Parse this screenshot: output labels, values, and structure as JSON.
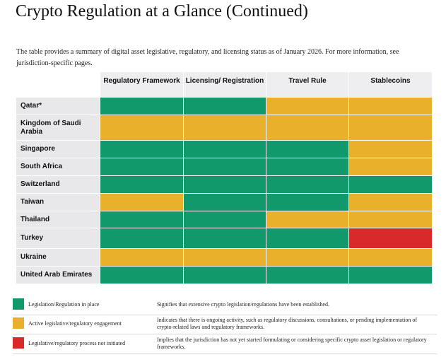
{
  "header": {
    "title": "Crypto Regulation at a Glance (Continued)",
    "intro": "The table provides a summary of digital asset legislative, regulatory, and licensing status as of January 2026. For more information, see jurisdiction-specific pages."
  },
  "table": {
    "columns": [
      "Regulatory Framework",
      "Licensing/ Registration",
      "Travel Rule",
      "Stablecoins"
    ],
    "rows": [
      {
        "name": "Qatar*",
        "cells": [
          "#12996b",
          "#12996b",
          "#e9b02b",
          "#e9b02b"
        ]
      },
      {
        "name": "Kingdom of Saudi Arabia",
        "cells": [
          "#e9b02b",
          "#e9b02b",
          "#e9b02b",
          "#e9b02b"
        ]
      },
      {
        "name": "Singapore",
        "cells": [
          "#12996b",
          "#12996b",
          "#12996b",
          "#e9b02b"
        ]
      },
      {
        "name": "South Africa",
        "cells": [
          "#12996b",
          "#12996b",
          "#12996b",
          "#e9b02b"
        ]
      },
      {
        "name": "Switzerland",
        "cells": [
          "#12996b",
          "#12996b",
          "#12996b",
          "#12996b"
        ]
      },
      {
        "name": "Taiwan",
        "cells": [
          "#e9b02b",
          "#12996b",
          "#12996b",
          "#e9b02b"
        ]
      },
      {
        "name": "Thailand",
        "cells": [
          "#12996b",
          "#12996b",
          "#e9b02b",
          "#e9b02b"
        ]
      },
      {
        "name": "Turkey",
        "cells": [
          "#12996b",
          "#12996b",
          "#12996b",
          "#d92a2b"
        ]
      },
      {
        "name": "Ukraine",
        "cells": [
          "#e9b02b",
          "#e9b02b",
          "#e9b02b",
          "#e9b02b"
        ]
      },
      {
        "name": "United Arab Emirates",
        "cells": [
          "#12996b",
          "#12996b",
          "#12996b",
          "#12996b"
        ]
      }
    ]
  },
  "legend": [
    {
      "color": "#12996b",
      "label": "Legislation/Regulation in place",
      "description": "Signifies that extensive crypto legislation/regulations have been established."
    },
    {
      "color": "#e9b02b",
      "label": "Active legislative/regulatory engagement",
      "description": "Indicates that there is ongoing activity, such as regulatory discussions, consultations, or pending implementation of crypto-related laws and regulatory frameworks."
    },
    {
      "color": "#d92a2b",
      "label": "Legislative/regulatory process not initiated",
      "description": "Implies that the jurisdiction has not yet started formulating or considering specific crypto asset legislation or regulatory frameworks."
    }
  ]
}
